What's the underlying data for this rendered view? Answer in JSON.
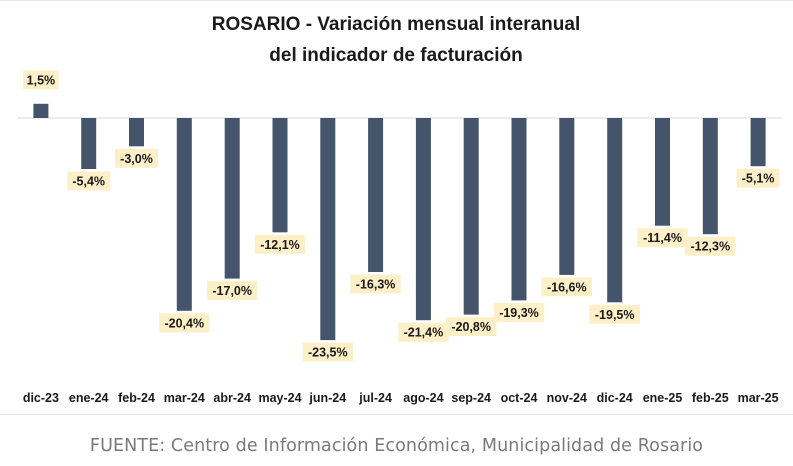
{
  "chart_data": {
    "type": "bar",
    "title": "ROSARIO - Variación mensual interanual",
    "subtitle": "del indicador de facturación",
    "categories": [
      "dic-23",
      "ene-24",
      "feb-24",
      "mar-24",
      "abr-24",
      "may-24",
      "jun-24",
      "jul-24",
      "ago-24",
      "sep-24",
      "oct-24",
      "nov-24",
      "dic-24",
      "ene-25",
      "feb-25",
      "mar-25"
    ],
    "values": [
      1.5,
      -5.4,
      -3.0,
      -20.4,
      -17.0,
      -12.1,
      -23.5,
      -16.3,
      -21.4,
      -20.8,
      -19.3,
      -16.6,
      -19.5,
      -11.4,
      -12.3,
      -5.1
    ],
    "value_labels": [
      "1,5%",
      "-5,4%",
      "-3,0%",
      "-20,4%",
      "-17,0%",
      "-12,1%",
      "-23,5%",
      "-16,3%",
      "-21,4%",
      "-20,8%",
      "-19,3%",
      "-16,6%",
      "-19,5%",
      "-11,4%",
      "-12,3%",
      "-5,1%"
    ],
    "bar_color": "#44546a",
    "label_bg_color": "#fdf0c8",
    "xlabel": "",
    "ylabel": "",
    "ylim": [
      -26,
      4
    ],
    "grid": false,
    "legend": "none"
  },
  "source": "FUENTE: Centro de Información Económica, Municipalidad de Rosario"
}
